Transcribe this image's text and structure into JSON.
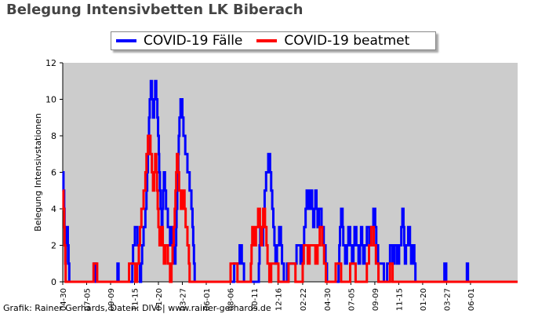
{
  "header": {
    "title": "Belegung Intensivbetten LK Biberach"
  },
  "footer": {
    "credit": "Grafik: Rainer Gerhards, Daten: DIVI | www.rainer-gerhards.de"
  },
  "chart_data": {
    "type": "line",
    "title": "Belegung Intensivbetten LK Biberach",
    "xlabel": "",
    "ylabel": "Belegung Intensivstationen",
    "ylim": [
      0,
      12
    ],
    "yticks": [
      0,
      2,
      4,
      6,
      8,
      10,
      12
    ],
    "x_tick_labels": [
      "04-30",
      "07-05",
      "09-09",
      "11-15",
      "01-20",
      "03-27",
      "06-01",
      "08-06",
      "10-11",
      "12-16",
      "02-22",
      "04-30",
      "07-05",
      "09-09",
      "11-15",
      "01-20",
      "03-27",
      "06-01"
    ],
    "x_tick_index": [
      0,
      66,
      132,
      198,
      264,
      330,
      396,
      462,
      528,
      594,
      662,
      729,
      795,
      861,
      927,
      993,
      1059,
      1125
    ],
    "n_points": 1256,
    "background_color": "#cccccc",
    "grid": false,
    "legend_position": "top-center",
    "series": [
      {
        "name": "COVID-19 Fälle",
        "color": "#0000ff",
        "keypoints": [
          [
            0,
            6
          ],
          [
            4,
            4
          ],
          [
            8,
            1
          ],
          [
            12,
            3
          ],
          [
            18,
            0
          ],
          [
            85,
            0
          ],
          [
            88,
            1
          ],
          [
            95,
            0
          ],
          [
            150,
            0
          ],
          [
            152,
            1
          ],
          [
            155,
            0
          ],
          [
            190,
            0
          ],
          [
            195,
            2
          ],
          [
            202,
            3
          ],
          [
            208,
            2
          ],
          [
            214,
            0
          ],
          [
            220,
            2
          ],
          [
            226,
            3
          ],
          [
            232,
            5
          ],
          [
            238,
            9
          ],
          [
            244,
            11
          ],
          [
            250,
            9
          ],
          [
            256,
            11
          ],
          [
            262,
            9
          ],
          [
            268,
            5
          ],
          [
            274,
            3
          ],
          [
            280,
            6
          ],
          [
            286,
            4
          ],
          [
            292,
            3
          ],
          [
            298,
            2
          ],
          [
            304,
            3
          ],
          [
            310,
            1
          ],
          [
            316,
            5
          ],
          [
            322,
            9
          ],
          [
            328,
            10
          ],
          [
            334,
            8
          ],
          [
            340,
            7
          ],
          [
            346,
            6
          ],
          [
            352,
            5
          ],
          [
            356,
            4
          ],
          [
            360,
            2
          ],
          [
            364,
            0
          ],
          [
            470,
            0
          ],
          [
            476,
            1
          ],
          [
            485,
            1
          ],
          [
            490,
            2
          ],
          [
            496,
            1
          ],
          [
            502,
            0
          ],
          [
            540,
            0
          ],
          [
            545,
            3
          ],
          [
            552,
            2
          ],
          [
            558,
            5
          ],
          [
            564,
            6
          ],
          [
            570,
            7
          ],
          [
            576,
            5
          ],
          [
            582,
            3
          ],
          [
            588,
            1
          ],
          [
            594,
            2
          ],
          [
            600,
            3
          ],
          [
            606,
            1
          ],
          [
            612,
            0
          ],
          [
            625,
            1
          ],
          [
            640,
            1
          ],
          [
            650,
            2
          ],
          [
            660,
            1
          ],
          [
            668,
            3
          ],
          [
            674,
            5
          ],
          [
            680,
            4
          ],
          [
            686,
            5
          ],
          [
            692,
            3
          ],
          [
            698,
            5
          ],
          [
            704,
            3
          ],
          [
            710,
            4
          ],
          [
            716,
            3
          ],
          [
            722,
            2
          ],
          [
            726,
            1
          ],
          [
            730,
            0
          ],
          [
            760,
            0
          ],
          [
            765,
            3
          ],
          [
            770,
            4
          ],
          [
            775,
            2
          ],
          [
            782,
            1
          ],
          [
            790,
            3
          ],
          [
            795,
            2
          ],
          [
            800,
            1
          ],
          [
            806,
            3
          ],
          [
            812,
            2
          ],
          [
            818,
            1
          ],
          [
            824,
            3
          ],
          [
            830,
            1
          ],
          [
            836,
            2
          ],
          [
            842,
            3
          ],
          [
            848,
            2
          ],
          [
            854,
            3
          ],
          [
            860,
            4
          ],
          [
            866,
            2
          ],
          [
            872,
            1
          ],
          [
            880,
            1
          ],
          [
            890,
            0
          ],
          [
            900,
            1
          ],
          [
            906,
            2
          ],
          [
            912,
            1
          ],
          [
            918,
            2
          ],
          [
            924,
            1
          ],
          [
            932,
            2
          ],
          [
            938,
            4
          ],
          [
            944,
            1
          ],
          [
            950,
            2
          ],
          [
            956,
            3
          ],
          [
            962,
            1
          ],
          [
            968,
            2
          ],
          [
            974,
            0
          ],
          [
            1016,
            0
          ],
          [
            1050,
            0
          ],
          [
            1055,
            1
          ],
          [
            1060,
            0
          ],
          [
            1113,
            0
          ],
          [
            1116,
            1
          ],
          [
            1119,
            0
          ],
          [
            1256,
            0
          ]
        ]
      },
      {
        "name": "COVID-19 beatmet",
        "color": "#ff0000",
        "keypoints": [
          [
            0,
            5
          ],
          [
            4,
            3
          ],
          [
            8,
            0
          ],
          [
            83,
            0
          ],
          [
            86,
            1
          ],
          [
            92,
            1
          ],
          [
            96,
            0
          ],
          [
            180,
            0
          ],
          [
            186,
            1
          ],
          [
            196,
            1
          ],
          [
            202,
            0
          ],
          [
            208,
            1
          ],
          [
            214,
            3
          ],
          [
            220,
            4
          ],
          [
            226,
            5
          ],
          [
            232,
            7
          ],
          [
            238,
            8
          ],
          [
            244,
            7
          ],
          [
            250,
            5
          ],
          [
            256,
            7
          ],
          [
            262,
            4
          ],
          [
            268,
            2
          ],
          [
            274,
            3
          ],
          [
            280,
            1
          ],
          [
            286,
            2
          ],
          [
            292,
            1
          ],
          [
            298,
            0
          ],
          [
            304,
            2
          ],
          [
            310,
            4
          ],
          [
            316,
            7
          ],
          [
            322,
            5
          ],
          [
            328,
            4
          ],
          [
            334,
            5
          ],
          [
            340,
            3
          ],
          [
            346,
            2
          ],
          [
            350,
            0
          ],
          [
            460,
            0
          ],
          [
            466,
            1
          ],
          [
            478,
            1
          ],
          [
            484,
            0
          ],
          [
            518,
            0
          ],
          [
            524,
            3
          ],
          [
            530,
            2
          ],
          [
            536,
            3
          ],
          [
            542,
            4
          ],
          [
            548,
            2
          ],
          [
            554,
            4
          ],
          [
            560,
            3
          ],
          [
            566,
            1
          ],
          [
            572,
            0
          ],
          [
            578,
            1
          ],
          [
            590,
            1
          ],
          [
            598,
            0
          ],
          [
            620,
            0
          ],
          [
            626,
            1
          ],
          [
            638,
            1
          ],
          [
            644,
            0
          ],
          [
            660,
            0
          ],
          [
            666,
            2
          ],
          [
            672,
            2
          ],
          [
            678,
            1
          ],
          [
            684,
            2
          ],
          [
            692,
            2
          ],
          [
            700,
            1
          ],
          [
            706,
            2
          ],
          [
            712,
            3
          ],
          [
            718,
            2
          ],
          [
            722,
            1
          ],
          [
            728,
            0
          ],
          [
            750,
            0
          ],
          [
            756,
            1
          ],
          [
            764,
            1
          ],
          [
            770,
            0
          ],
          [
            790,
            0
          ],
          [
            796,
            1
          ],
          [
            804,
            1
          ],
          [
            810,
            0
          ],
          [
            836,
            0
          ],
          [
            842,
            1
          ],
          [
            848,
            2
          ],
          [
            854,
            3
          ],
          [
            860,
            2
          ],
          [
            866,
            1
          ],
          [
            874,
            0
          ],
          [
            900,
            0
          ],
          [
            906,
            1
          ],
          [
            912,
            0
          ],
          [
            1256,
            0
          ]
        ]
      }
    ]
  }
}
